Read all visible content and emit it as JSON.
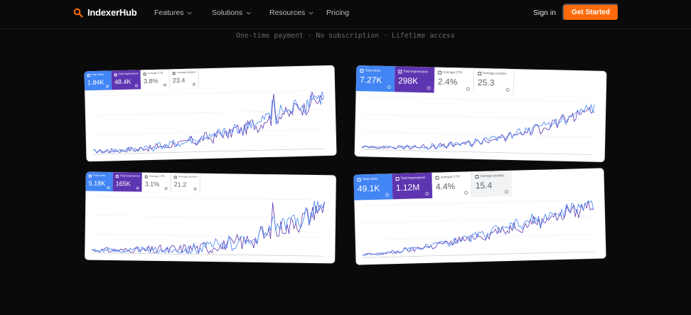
{
  "nav": {
    "brand": "IndexerHub",
    "items": [
      {
        "label": "Features",
        "dropdown": true
      },
      {
        "label": "Solutions",
        "dropdown": true
      },
      {
        "label": "Resources",
        "dropdown": true
      },
      {
        "label": "Pricing",
        "dropdown": false
      }
    ],
    "signin": "Sign in",
    "cta": "Get Started"
  },
  "colors": {
    "accent": "#ff6b0b",
    "clicks": "#4285f4",
    "impressions": "#5e35b1",
    "background": "#0a0a0a"
  },
  "tagline": "One-time payment · No subscription · Lifetime access",
  "cards": [
    {
      "metrics": [
        {
          "label": "Total clicks",
          "value": "1.84K"
        },
        {
          "label": "Total impressions",
          "value": "48.4K"
        },
        {
          "label": "Average CTR",
          "value": "3.8%"
        },
        {
          "label": "Average position",
          "value": "23.4"
        }
      ]
    },
    {
      "metrics": [
        {
          "label": "Total clicks",
          "value": "7.27K"
        },
        {
          "label": "Total impressions",
          "value": "298K"
        },
        {
          "label": "Average CTR",
          "value": "2.4%"
        },
        {
          "label": "Average position",
          "value": "25.3"
        }
      ]
    },
    {
      "metrics": [
        {
          "label": "Total clicks",
          "value": "5.18K"
        },
        {
          "label": "Total impressions",
          "value": "165K"
        },
        {
          "label": "Average CTR",
          "value": "3.1%"
        },
        {
          "label": "Average position",
          "value": "21.2"
        }
      ]
    },
    {
      "metrics": [
        {
          "label": "Total clicks",
          "value": "49.1K"
        },
        {
          "label": "Total impressions",
          "value": "1.12M"
        },
        {
          "label": "Average CTR",
          "value": "4.4%"
        },
        {
          "label": "Average position",
          "value": "15.4"
        }
      ]
    }
  ]
}
